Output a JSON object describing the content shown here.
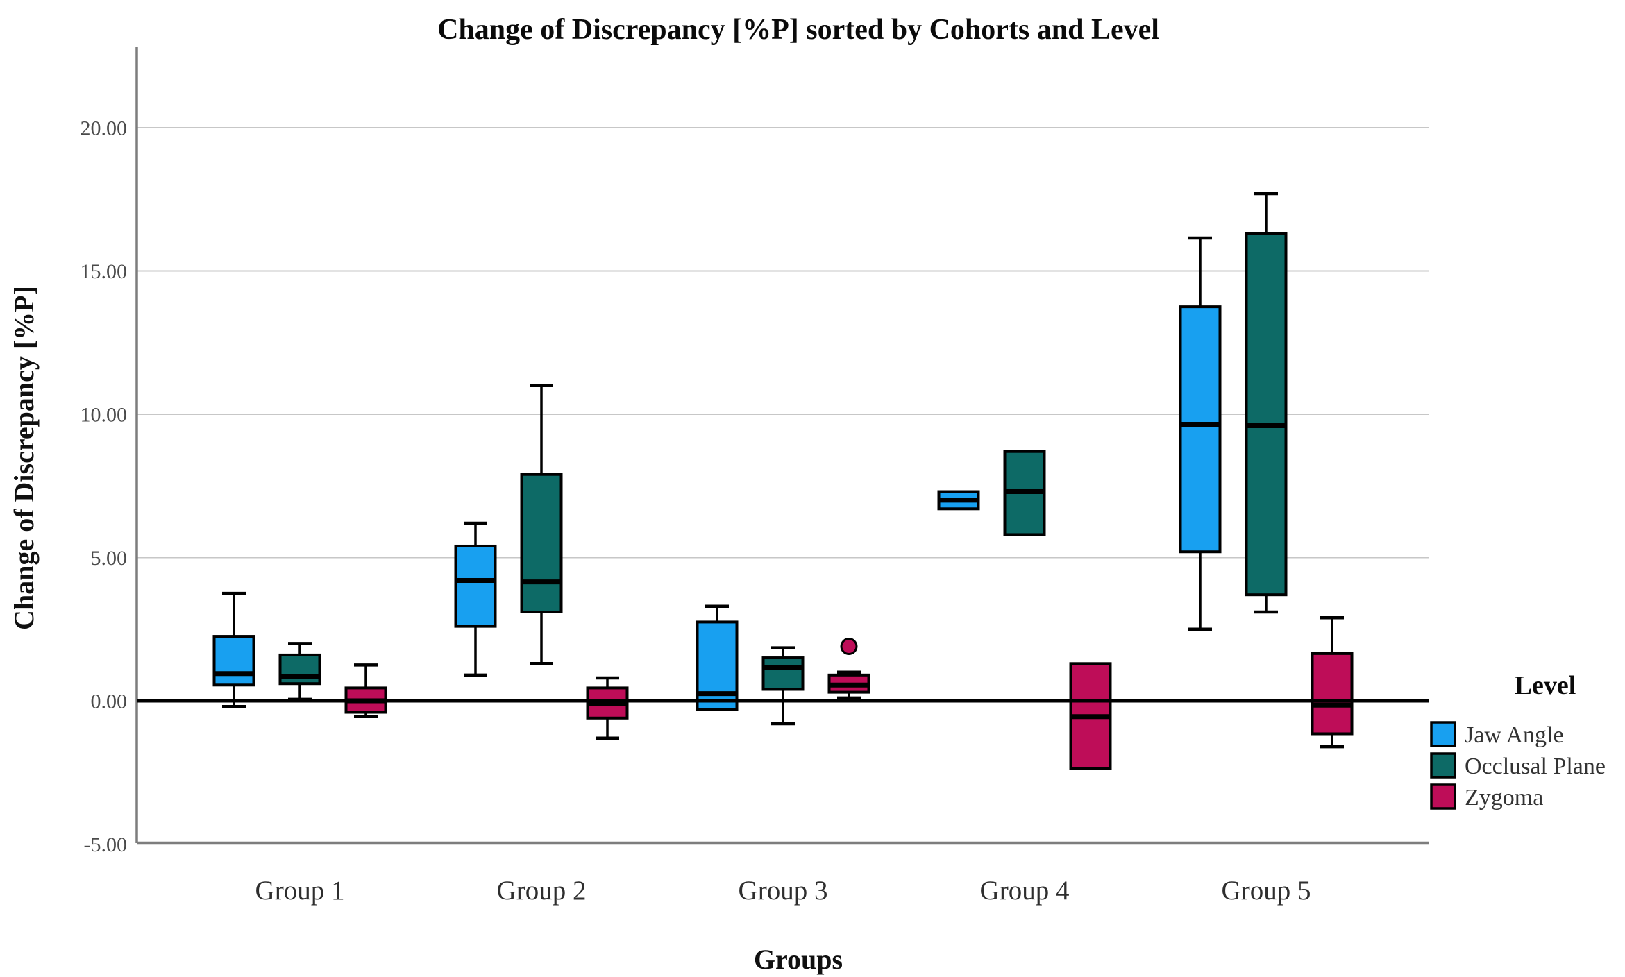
{
  "title": "Change of Discrepancy [%P] sorted by Cohorts and Level",
  "y_axis": {
    "title": "Change of Discrepancy [%P]",
    "tick_labels": [
      "20.00",
      "15.00",
      "10.00",
      "5.00",
      "0.00",
      "-5.00"
    ],
    "tick_values": [
      20,
      15,
      10,
      5,
      0,
      -5
    ]
  },
  "x_axis": {
    "title": "Groups",
    "categories": [
      "Group 1",
      "Group 2",
      "Group 3",
      "Group 4",
      "Group 5"
    ]
  },
  "legend": {
    "title": "Level",
    "items": [
      {
        "label": "Jaw Angle",
        "color": "#18A0F0"
      },
      {
        "label": "Occlusal Plane",
        "color": "#0D6A66"
      },
      {
        "label": "Zygoma",
        "color": "#BE0D58"
      }
    ]
  },
  "colors": {
    "jaw_angle": "#18A0F0",
    "occlusal_plane": "#0D6A66",
    "zygoma": "#BE0D58",
    "gridline": "#c7c7c7",
    "axis_frame": "#7d7d7d",
    "zero_line": "#000000",
    "box_border": "#000000"
  },
  "chart_data": {
    "type": "boxplot",
    "title": "Change of Discrepancy [%P] sorted by Cohorts and Level",
    "xlabel": "Groups",
    "ylabel": "Change of Discrepancy [%P]",
    "ylim": [
      -5,
      22.8
    ],
    "grid": true,
    "zero_line_emphasized": true,
    "legend_position": "right",
    "categories": [
      "Group 1",
      "Group 2",
      "Group 3",
      "Group 4",
      "Group 5"
    ],
    "series": [
      {
        "name": "Jaw Angle",
        "color": "#18A0F0",
        "boxes": [
          {
            "low": -0.2,
            "q1": 0.55,
            "median": 0.95,
            "q3": 2.25,
            "high": 3.75,
            "outliers": []
          },
          {
            "low": 0.9,
            "q1": 2.6,
            "median": 4.2,
            "q3": 5.4,
            "high": 6.2,
            "outliers": []
          },
          {
            "low": -0.3,
            "q1": -0.3,
            "median": 0.25,
            "q3": 2.75,
            "high": 3.3,
            "outliers": []
          },
          {
            "low": 6.7,
            "q1": 6.7,
            "median": 7.0,
            "q3": 7.3,
            "high": 7.3,
            "outliers": []
          },
          {
            "low": 2.5,
            "q1": 5.2,
            "median": 9.65,
            "q3": 13.75,
            "high": 16.15,
            "outliers": []
          }
        ]
      },
      {
        "name": "Occlusal Plane",
        "color": "#0D6A66",
        "boxes": [
          {
            "low": 0.05,
            "q1": 0.6,
            "median": 0.85,
            "q3": 1.6,
            "high": 2.0,
            "outliers": []
          },
          {
            "low": 1.3,
            "q1": 3.1,
            "median": 4.15,
            "q3": 7.9,
            "high": 11.0,
            "outliers": []
          },
          {
            "low": -0.8,
            "q1": 0.4,
            "median": 1.15,
            "q3": 1.5,
            "high": 1.85,
            "outliers": []
          },
          {
            "low": 5.8,
            "q1": 5.8,
            "median": 7.3,
            "q3": 8.7,
            "high": 8.7,
            "outliers": []
          },
          {
            "low": 3.1,
            "q1": 3.7,
            "median": 9.6,
            "q3": 16.3,
            "high": 17.7,
            "outliers": []
          }
        ]
      },
      {
        "name": "Zygoma",
        "color": "#BE0D58",
        "boxes": [
          {
            "low": -0.55,
            "q1": -0.4,
            "median": 0.0,
            "q3": 0.45,
            "high": 1.25,
            "outliers": []
          },
          {
            "low": -1.3,
            "q1": -0.6,
            "median": -0.1,
            "q3": 0.45,
            "high": 0.8,
            "outliers": []
          },
          {
            "low": 0.1,
            "q1": 0.3,
            "median": 0.55,
            "q3": 0.9,
            "high": 1.0,
            "outliers": [
              1.9
            ]
          },
          {
            "low": -2.35,
            "q1": -2.35,
            "median": -0.55,
            "q3": 1.3,
            "high": 1.3,
            "outliers": []
          },
          {
            "low": -1.6,
            "q1": -1.15,
            "median": -0.15,
            "q3": 1.65,
            "high": 2.9,
            "outliers": []
          }
        ]
      }
    ]
  }
}
